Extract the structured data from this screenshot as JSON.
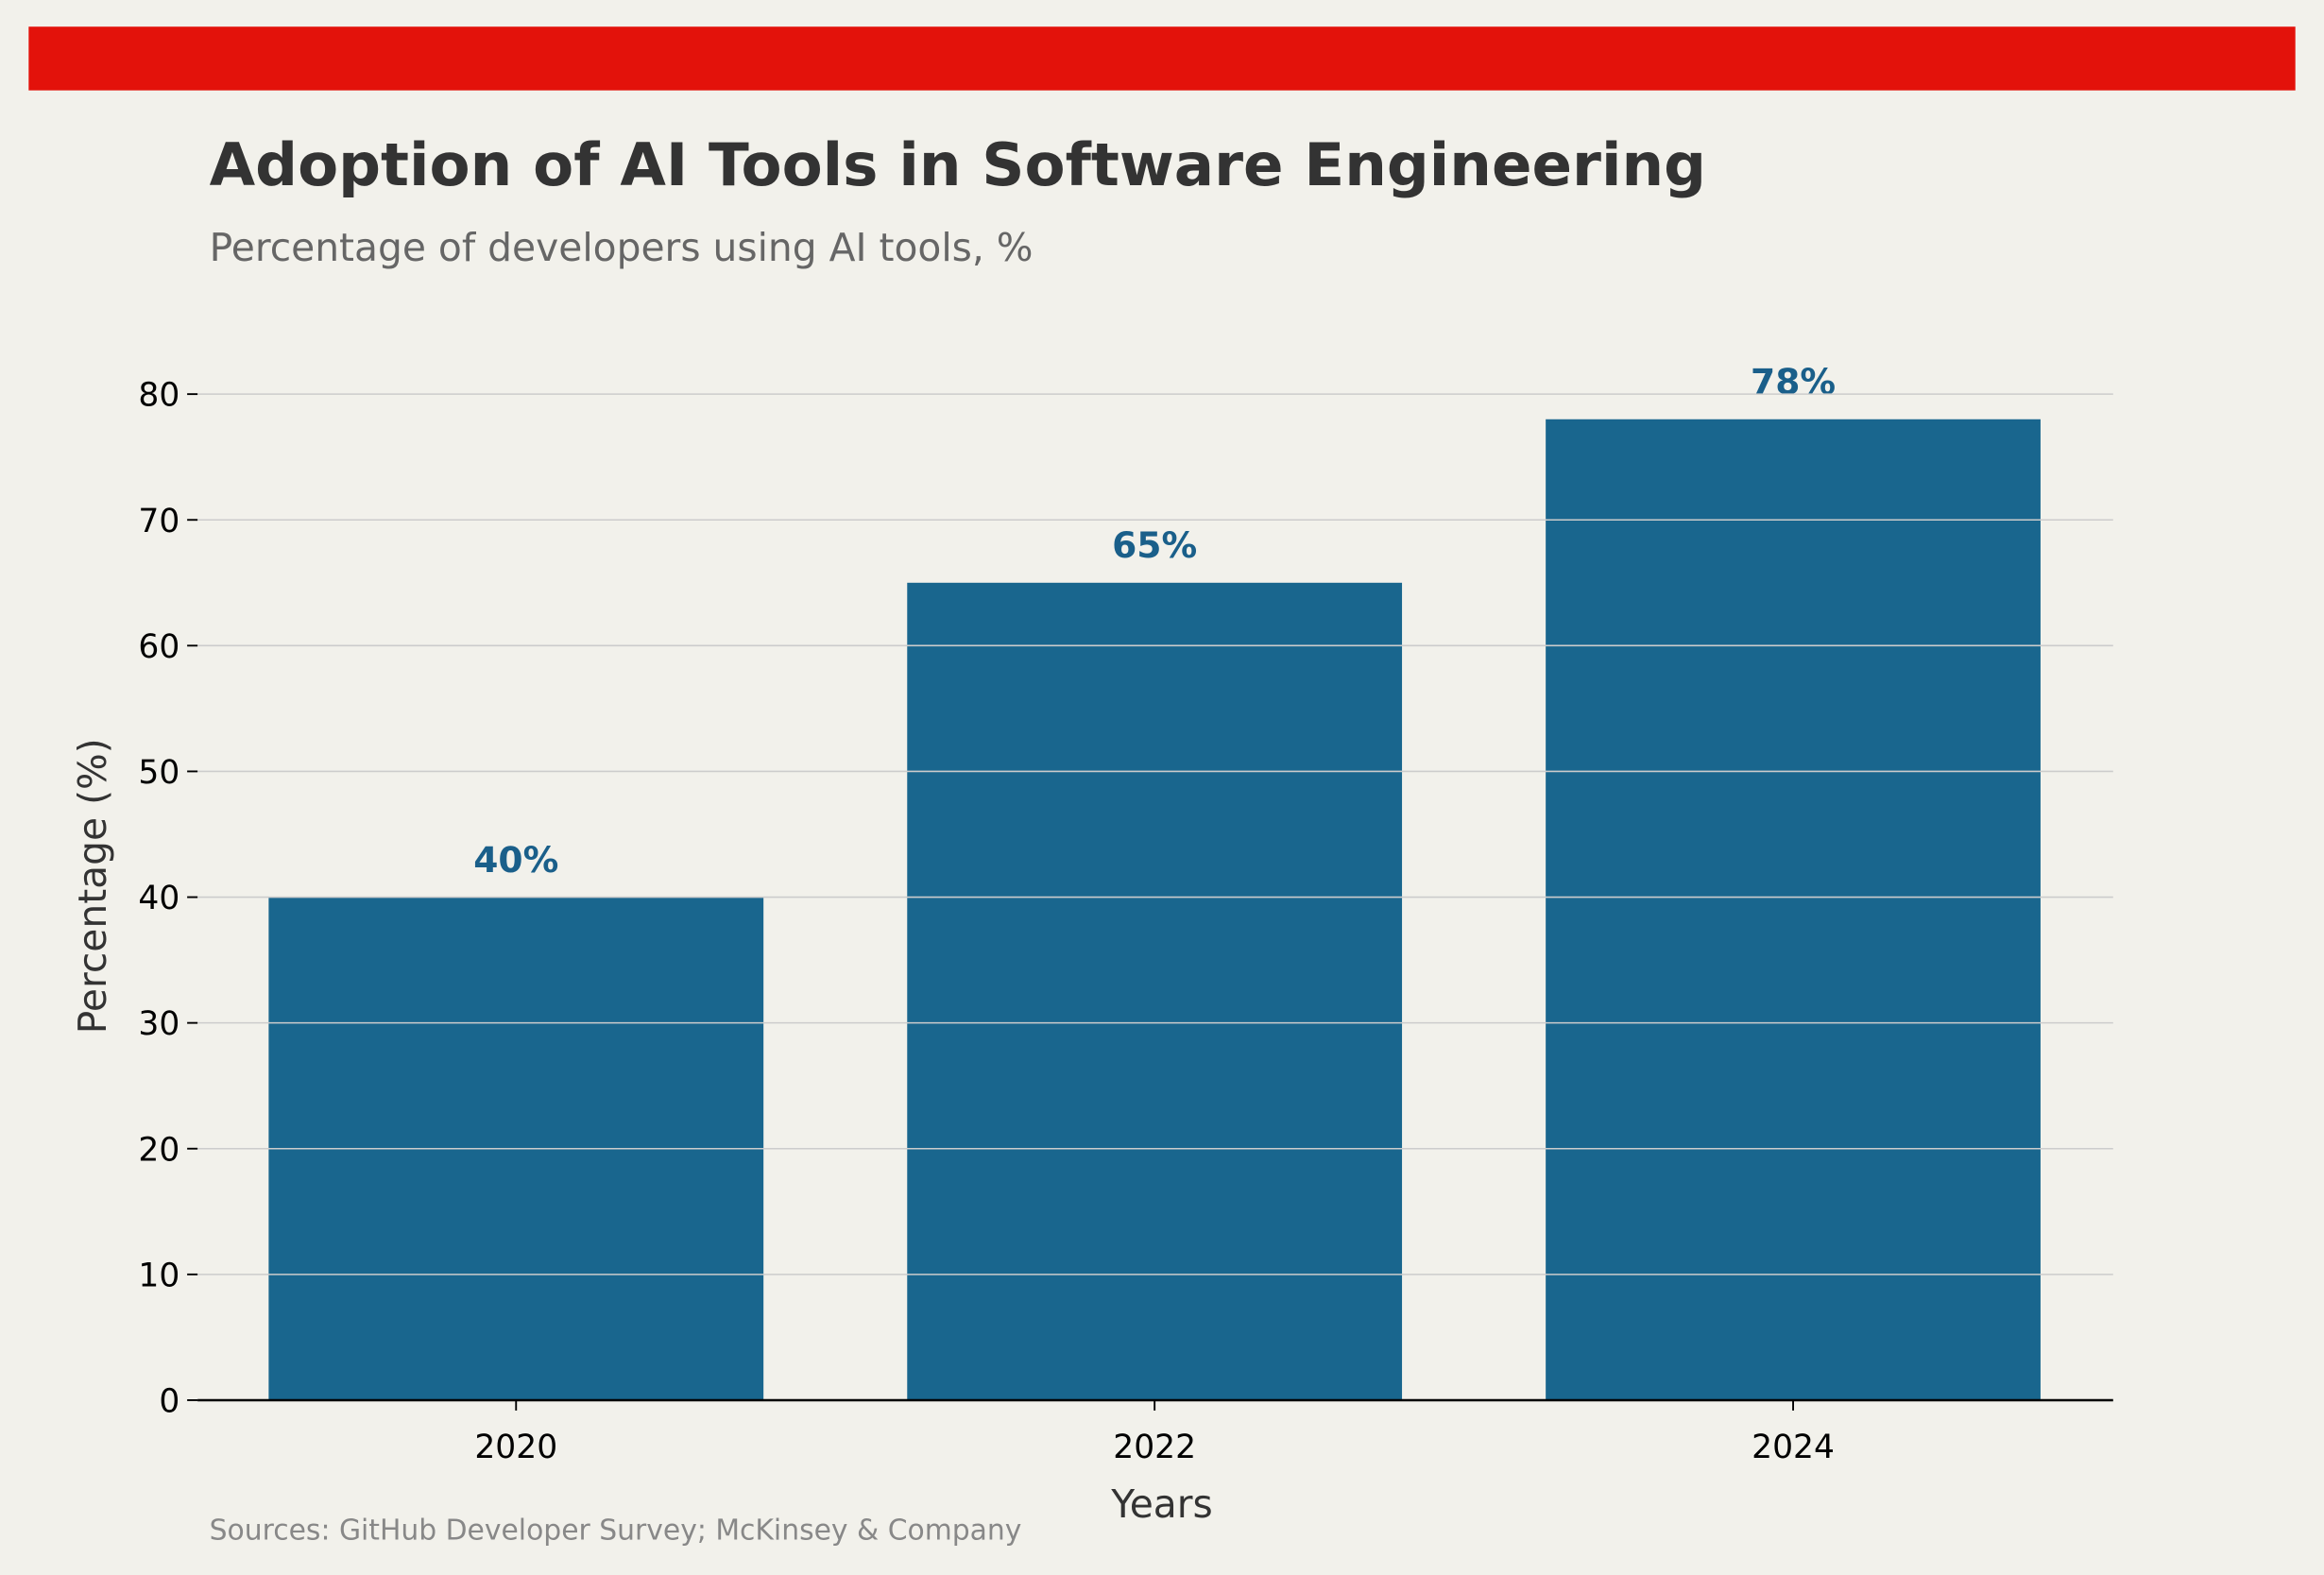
{
  "header": {
    "title": "Adoption of AI Tools in Software Engineering",
    "subtitle": "Percentage of developers using AI tools, %",
    "source": "Sources: GitHub Developer Survey; McKinsey & Company"
  },
  "colors": {
    "background": "#f2f1eb",
    "accent_bar": "#e3120b",
    "bars": "#19668e",
    "data_labels": "#1a5f8a",
    "title": "#333333",
    "subtitle": "#666666",
    "source": "#888888",
    "grid": "#cccccc"
  },
  "chart_data": {
    "type": "bar",
    "title": "Adoption of AI Tools in Software Engineering",
    "subtitle": "Percentage of developers using AI tools, %",
    "xlabel": "Years",
    "ylabel": "Percentage (%)",
    "categories": [
      "2020",
      "2022",
      "2024"
    ],
    "values": [
      40,
      65,
      78
    ],
    "data_labels": [
      "40%",
      "65%",
      "78%"
    ],
    "ylim": [
      0,
      80
    ],
    "yticks": [
      "0",
      "10",
      "20",
      "30",
      "40",
      "50",
      "60",
      "70",
      "80"
    ],
    "grid": "horizontal",
    "legend": "none"
  }
}
